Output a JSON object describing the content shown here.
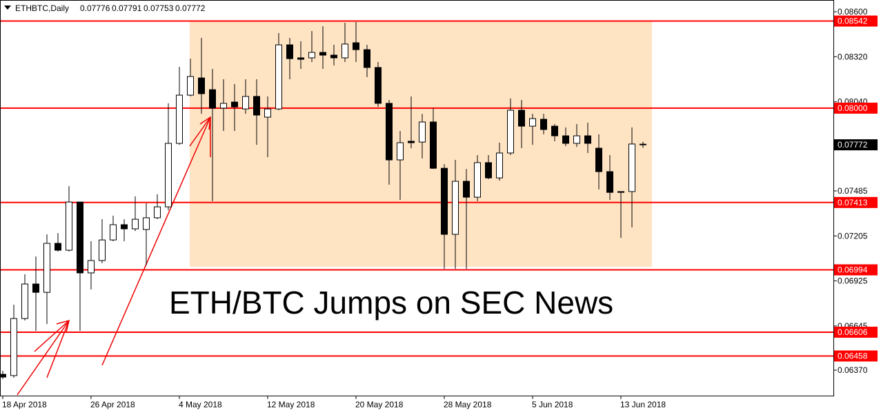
{
  "chart_data": {
    "type": "candlestick",
    "title": "ETHBTC,Daily",
    "annotation": "ETH/BTC Jumps on SEC News",
    "categories": [
      "18 Apr 2018",
      null,
      null,
      null,
      null,
      null,
      null,
      null,
      "26 Apr 2018",
      null,
      null,
      null,
      null,
      null,
      null,
      null,
      "4 May 2018",
      null,
      null,
      null,
      null,
      null,
      null,
      null,
      "12 May 2018",
      null,
      null,
      null,
      null,
      null,
      null,
      null,
      "20 May 2018",
      null,
      null,
      null,
      null,
      null,
      null,
      null,
      "28 May 2018",
      null,
      null,
      null,
      null,
      null,
      null,
      null,
      "5 Jun 2018",
      null,
      null,
      null,
      null,
      null,
      null,
      null,
      "13 Jun 2018",
      null,
      null
    ],
    "open": [
      0.06344,
      0.06336,
      0.06691,
      0.06906,
      0.06854,
      0.07159,
      0.07116,
      0.07416,
      0.06975,
      0.07052,
      0.0718,
      0.07275,
      0.07249,
      0.07245,
      0.07318,
      0.07386,
      0.07781,
      0.08081,
      0.08188,
      0.08115,
      0.08,
      0.08038,
      0.07995,
      0.08073,
      0.07944,
      0.07995,
      0.08394,
      0.08313,
      0.08313,
      0.08347,
      0.0833,
      0.08313,
      0.08407,
      0.08364,
      0.08253,
      0.0803,
      0.07678,
      0.07794,
      0.07789,
      0.07914,
      0.07626,
      0.07215,
      0.07545,
      0.07446,
      0.07661,
      0.07566,
      0.07721,
      0.07987,
      0.07888,
      0.07931,
      0.07888,
      0.07828,
      0.07781,
      0.07828,
      0.07751,
      0.07605,
      0.07481,
      0.07481,
      0.07776
    ],
    "high": [
      0.06366,
      0.06777,
      0.06966,
      0.07077,
      0.07215,
      0.07223,
      0.07515,
      0.07416,
      0.07172,
      0.07309,
      0.07331,
      0.07309,
      0.07451,
      0.07408,
      0.07464,
      0.0803,
      0.08257,
      0.08308,
      0.08437,
      0.08244,
      0.0818,
      0.0815,
      0.0818,
      0.0818,
      0.08073,
      0.08467,
      0.08437,
      0.08416,
      0.0848,
      0.0851,
      0.08394,
      0.08531,
      0.08536,
      0.08394,
      0.08287,
      0.08051,
      0.07858,
      0.08073,
      0.07965,
      0.08,
      0.07652,
      0.07678,
      0.07622,
      0.07708,
      0.07708,
      0.07785,
      0.0806,
      0.08051,
      0.07965,
      0.07965,
      0.07901,
      0.0788,
      0.07901,
      0.0791,
      0.07837,
      0.07708,
      0.07481,
      0.0788,
      0.07791
    ],
    "low": [
      0.06314,
      0.06323,
      0.06679,
      0.06614,
      0.06657,
      0.07108,
      0.07108,
      0.06614,
      0.06872,
      0.07035,
      0.07172,
      0.07172,
      0.07236,
      0.07022,
      0.07309,
      0.07365,
      0.07772,
      0.08073,
      0.07965,
      0.07421,
      0.07858,
      0.07858,
      0.07965,
      0.07772,
      0.07695,
      0.07987,
      0.0818,
      0.08244,
      0.08287,
      0.08244,
      0.08266,
      0.08287,
      0.08287,
      0.08193,
      0.08008,
      0.07524,
      0.07429,
      0.07751,
      0.07687,
      0.07622,
      0.07,
      0.07,
      0.07,
      0.07421,
      0.07558,
      0.07549,
      0.07708,
      0.07751,
      0.07772,
      0.07837,
      0.07794,
      0.07764,
      0.07759,
      0.07721,
      0.07494,
      0.07429,
      0.07193,
      0.07258,
      0.07753
    ],
    "close": [
      0.06327,
      0.06691,
      0.06906,
      0.06854,
      0.07159,
      0.07116,
      0.07416,
      0.06975,
      0.07052,
      0.0718,
      0.07275,
      0.07249,
      0.07309,
      0.07318,
      0.07386,
      0.07781,
      0.08081,
      0.08197,
      0.0809,
      0.08,
      0.0803,
      0.08008,
      0.08073,
      0.07957,
      0.07995,
      0.08394,
      0.08308,
      0.08304,
      0.08347,
      0.0833,
      0.08313,
      0.08399,
      0.08364,
      0.08253,
      0.0803,
      0.07678,
      0.07785,
      0.07785,
      0.07914,
      0.07626,
      0.07215,
      0.07545,
      0.07446,
      0.07661,
      0.07566,
      0.07721,
      0.07987,
      0.07888,
      0.07935,
      0.07867,
      0.07828,
      0.07781,
      0.07828,
      0.07781,
      0.07605,
      0.07476,
      0.07476,
      0.07777,
      0.07772
    ],
    "ylim": [
      0.06207,
      0.08673
    ],
    "yticks": [
      {
        "value": 0.086,
        "label": "0.08600"
      },
      {
        "value": 0.0832,
        "label": "0.08320"
      },
      {
        "value": 0.0804,
        "label": "0.08040"
      },
      0.07485,
      0.07205,
      0.06925,
      0.06645,
      {
        "value": 0.0637,
        "label": "0.06370"
      }
    ],
    "levels": [
      0.08542,
      {
        "value": 0.08,
        "label": "0.08000"
      },
      0.07413,
      0.06994,
      0.06606,
      0.06458
    ],
    "last_price": 0.07772,
    "up_color": "#ffffff",
    "down_color": "#000000",
    "level_color": "#ff0000"
  }
}
